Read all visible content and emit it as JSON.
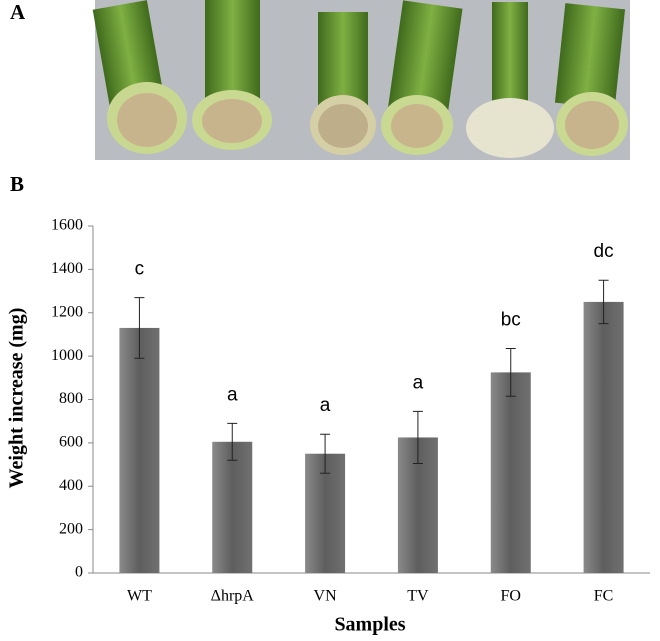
{
  "panel_labels": [
    "A",
    "B"
  ],
  "chart_data": {
    "type": "bar",
    "ylabel": "Weight increase (mg)",
    "xlabel": "Samples",
    "categories": [
      "WT",
      "ΔhrpA",
      "VN",
      "TV",
      "FO",
      "FC"
    ],
    "values": [
      1130,
      605,
      550,
      625,
      925,
      1250
    ],
    "errors": [
      140,
      85,
      90,
      120,
      110,
      100
    ],
    "annotations": [
      "c",
      "a",
      "a",
      "a",
      "bc",
      "dc"
    ],
    "color": "#6a6a6a",
    "ylim": [
      0,
      1600
    ],
    "yticks": [
      0,
      200,
      400,
      600,
      800,
      1000,
      1200,
      1400,
      1600
    ],
    "grid": false
  }
}
